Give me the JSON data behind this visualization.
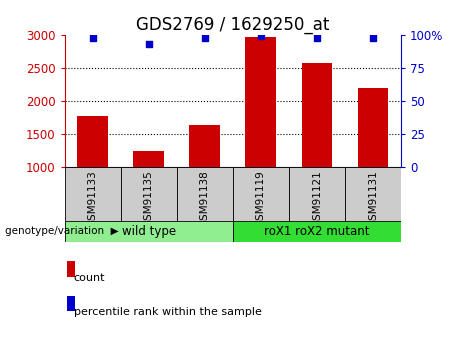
{
  "title": "GDS2769 / 1629250_at",
  "categories": [
    "GSM91133",
    "GSM91135",
    "GSM91138",
    "GSM91119",
    "GSM91121",
    "GSM91131"
  ],
  "bar_values": [
    1780,
    1250,
    1640,
    2960,
    2570,
    2190
  ],
  "percentile_values": [
    97,
    93,
    97,
    99,
    97,
    97
  ],
  "bar_color": "#cc0000",
  "dot_color": "#0000cc",
  "ylim_left": [
    1000,
    3000
  ],
  "ylim_right": [
    0,
    100
  ],
  "yticks_left": [
    1000,
    1500,
    2000,
    2500,
    3000
  ],
  "yticks_right": [
    0,
    25,
    50,
    75,
    100
  ],
  "grid_lines": [
    1500,
    2000,
    2500
  ],
  "group_labels": [
    "wild type",
    "roX1 roX2 mutant"
  ],
  "group_colors": [
    "#90ee90",
    "#33dd33"
  ],
  "label_genotype": "genotype/variation",
  "legend_count": "count",
  "legend_percentile": "percentile rank within the sample",
  "bar_width": 0.55,
  "tick_color_left": "#cc0000",
  "tick_color_right": "#0000cc",
  "title_fontsize": 12,
  "axis_fontsize": 8.5,
  "label_fontsize": 8
}
